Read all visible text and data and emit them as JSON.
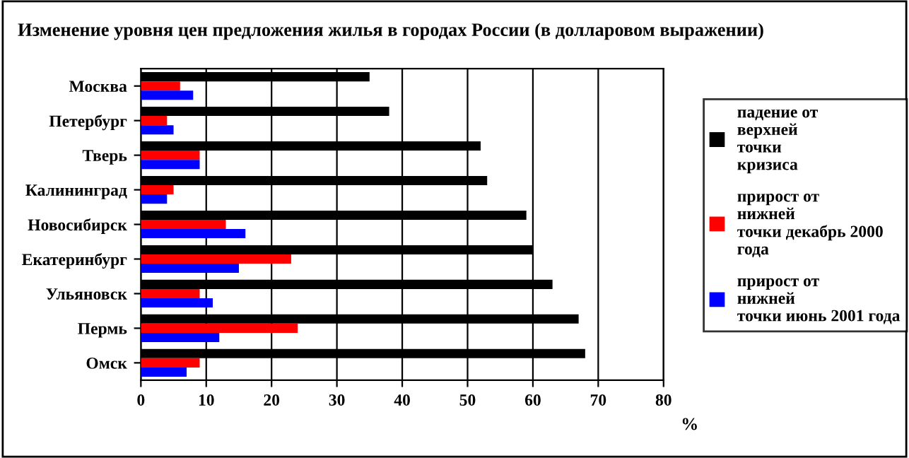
{
  "chart_data": {
    "type": "bar",
    "orientation": "horizontal",
    "title": "Изменение уровня цен предложения жилья в городах России (в долларовом выражении)",
    "xlabel": "%",
    "categories": [
      "Москва",
      "Петербург",
      "Тверь",
      "Калининград",
      "Новосибирск",
      "Екатеринбург",
      "Ульяновск",
      "Пермь",
      "Омск"
    ],
    "series": [
      {
        "name": "падение от верхней точки кризиса",
        "color": "#000000",
        "values": [
          35,
          38,
          52,
          53,
          59,
          60,
          63,
          67,
          68
        ]
      },
      {
        "name": "прирост от нижней точки декабрь 2000 года",
        "color": "#ff0000",
        "values": [
          6,
          4,
          9,
          5,
          13,
          23,
          9,
          24,
          9
        ]
      },
      {
        "name": "прирост от нижней точки июнь 2001 года",
        "color": "#0000ff",
        "values": [
          8,
          5,
          9,
          4,
          16,
          15,
          11,
          12,
          7
        ]
      }
    ],
    "xlim": [
      0,
      80
    ],
    "xticks": [
      0,
      10,
      20,
      30,
      40,
      50,
      60,
      70,
      80
    ],
    "grid": "x",
    "legend": "right"
  }
}
